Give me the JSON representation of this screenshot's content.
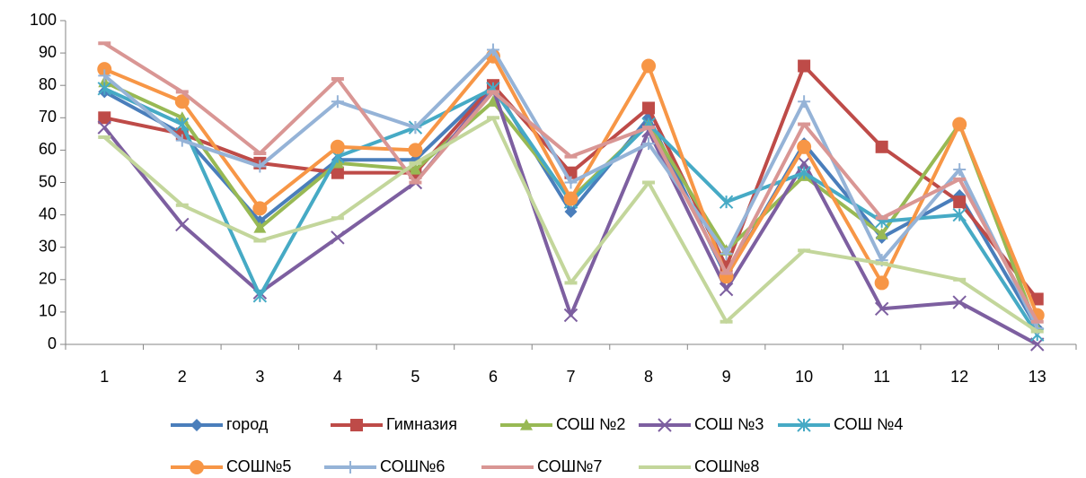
{
  "chart_data": {
    "type": "line",
    "categories": [
      "1",
      "2",
      "3",
      "4",
      "5",
      "6",
      "7",
      "8",
      "9",
      "10",
      "11",
      "12",
      "13"
    ],
    "ylim": [
      0,
      100
    ],
    "yticks": [
      0,
      10,
      20,
      30,
      40,
      50,
      60,
      70,
      80,
      90,
      100
    ],
    "grid": false,
    "legend": "bottom",
    "series": [
      {
        "name": "город",
        "color": "#4a7ebb",
        "marker": "diamond",
        "values": [
          78,
          65,
          38,
          57,
          57,
          80,
          41,
          70,
          21,
          62,
          33,
          46,
          5
        ]
      },
      {
        "name": "Гимназия",
        "color": "#be4b48",
        "marker": "square",
        "values": [
          70,
          65,
          56,
          53,
          53,
          80,
          53,
          73,
          24,
          86,
          61,
          44,
          14
        ]
      },
      {
        "name": "СОШ №2",
        "color": "#98b954",
        "marker": "triangle",
        "values": [
          81,
          70,
          36,
          56,
          54,
          75,
          45,
          68,
          29,
          52,
          34,
          68,
          5
        ]
      },
      {
        "name": "СОШ №3",
        "color": "#7d5fa0",
        "marker": "x",
        "values": [
          67,
          37,
          16,
          33,
          50,
          79,
          9,
          66,
          17,
          56,
          11,
          13,
          0
        ]
      },
      {
        "name": "СОШ №4",
        "color": "#46aac5",
        "marker": "star",
        "values": [
          79,
          68,
          15,
          58,
          67,
          79,
          44,
          68,
          44,
          53,
          38,
          40,
          3
        ]
      },
      {
        "name": "СОШ№5",
        "color": "#f79646",
        "marker": "circle",
        "values": [
          85,
          75,
          42,
          61,
          60,
          89,
          45,
          86,
          21,
          61,
          19,
          68,
          9
        ]
      },
      {
        "name": "СОШ№6",
        "color": "#95b3d7",
        "marker": "plus",
        "values": [
          83,
          63,
          55,
          75,
          67,
          91,
          50,
          62,
          28,
          75,
          26,
          54,
          5
        ]
      },
      {
        "name": "СОШ№7",
        "color": "#d99694",
        "marker": "dash",
        "values": [
          93,
          78,
          59,
          82,
          50,
          78,
          58,
          67,
          22,
          68,
          39,
          51,
          7
        ]
      },
      {
        "name": "СОШ№8",
        "color": "#c3d69b",
        "marker": "dash",
        "values": [
          64,
          43,
          32,
          39,
          56,
          70,
          19,
          50,
          7,
          29,
          25,
          20,
          4
        ]
      }
    ]
  }
}
